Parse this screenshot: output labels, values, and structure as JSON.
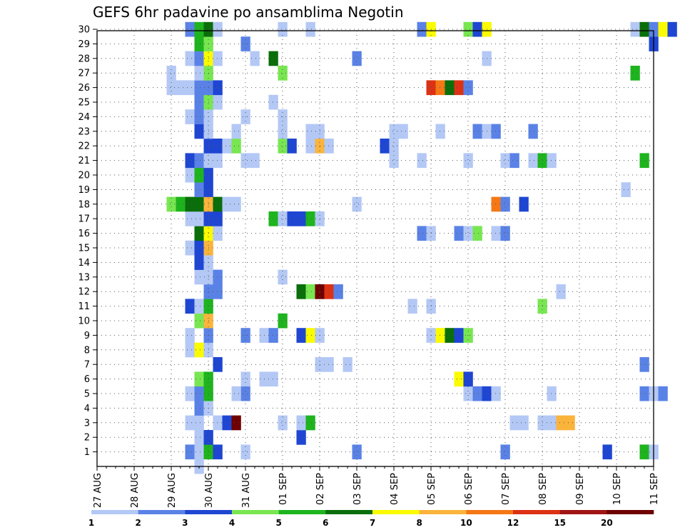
{
  "chart_data": {
    "type": "heatmap",
    "title": "GEFS 6hr padavine po ansamblima Negotin",
    "x_tick_labels": [
      "27 AUG",
      "28 AUG",
      "29 AUG",
      "30 AUG",
      "31 AUG",
      "01 SEP",
      "02 SEP",
      "03 SEP",
      "04 SEP",
      "05 SEP",
      "06 SEP",
      "07 SEP",
      "08 SEP",
      "09 SEP",
      "10 SEP",
      "11 SEP"
    ],
    "x_range_days": [
      0,
      15
    ],
    "y_tick_labels": [
      "1",
      "2",
      "3",
      "4",
      "5",
      "6",
      "7",
      "8",
      "9",
      "10",
      "11",
      "12",
      "13",
      "14",
      "15",
      "16",
      "17",
      "18",
      "19",
      "20",
      "21",
      "22",
      "23",
      "24",
      "25",
      "26",
      "27",
      "28",
      "29",
      "30"
    ],
    "y_range": [
      0,
      30
    ],
    "grid": true,
    "legend": {
      "placement": "bottom",
      "labels": [
        "1",
        "2",
        "3",
        "4",
        "5",
        "6",
        "7",
        "8",
        "10",
        "12",
        "15",
        "20"
      ],
      "colors": [
        "#b4c8f5",
        "#5a82e6",
        "#1e46d2",
        "#78e650",
        "#1eb41e",
        "#0a6e0a",
        "#fafa00",
        "#fab43c",
        "#f57814",
        "#dc3214",
        "#a01414",
        "#6e0000"
      ]
    },
    "category_colors": {
      "1": "#b4c8f5",
      "2": "#5a82e6",
      "3": "#1e46d2",
      "4": "#78e650",
      "5": "#1eb41e",
      "6": "#0a6e0a",
      "7": "#fafa00",
      "8": "#fab43c",
      "9": "#f57814",
      "10": "#dc3214",
      "11": "#a01414",
      "12": "#6e0000"
    },
    "cell_width_days": 0.25,
    "cells": [
      {
        "m": 1,
        "d": 2.5,
        "c": 2
      },
      {
        "m": 1,
        "d": 2.75,
        "c": 1
      },
      {
        "m": 1,
        "d": 3.0,
        "c": 5
      },
      {
        "m": 1,
        "d": 3.25,
        "c": 3
      },
      {
        "m": 1,
        "d": 4.0,
        "c": 1
      },
      {
        "m": 1,
        "d": 7.0,
        "c": 2
      },
      {
        "m": 1,
        "d": 11.0,
        "c": 2
      },
      {
        "m": 1,
        "d": 13.75,
        "c": 3
      },
      {
        "m": 1,
        "d": 14.75,
        "c": 5
      },
      {
        "m": 1,
        "d": 15.0,
        "c": 1
      },
      {
        "m": 2,
        "d": 2.75,
        "c": 1
      },
      {
        "m": 2,
        "d": 3.0,
        "c": 3
      },
      {
        "m": 2,
        "d": 5.5,
        "c": 3
      },
      {
        "m": 3,
        "d": 2.5,
        "c": 1
      },
      {
        "m": 3,
        "d": 2.75,
        "c": 1
      },
      {
        "m": 3,
        "d": 3.25,
        "c": 1
      },
      {
        "m": 3,
        "d": 3.5,
        "c": 3
      },
      {
        "m": 3,
        "d": 3.75,
        "c": 12
      },
      {
        "m": 3,
        "d": 5.0,
        "c": 1
      },
      {
        "m": 3,
        "d": 5.5,
        "c": 1
      },
      {
        "m": 3,
        "d": 5.75,
        "c": 5
      },
      {
        "m": 3,
        "d": 11.25,
        "c": 1
      },
      {
        "m": 3,
        "d": 11.5,
        "c": 1
      },
      {
        "m": 3,
        "d": 12.0,
        "c": 1
      },
      {
        "m": 3,
        "d": 12.25,
        "c": 1
      },
      {
        "m": 3,
        "d": 12.5,
        "c": 8
      },
      {
        "m": 3,
        "d": 12.75,
        "c": 8
      },
      {
        "m": 4,
        "d": 2.75,
        "c": 2
      },
      {
        "m": 4,
        "d": 3.0,
        "c": 1
      },
      {
        "m": 5,
        "d": 2.5,
        "c": 1
      },
      {
        "m": 5,
        "d": 2.75,
        "c": 2
      },
      {
        "m": 5,
        "d": 3.0,
        "c": 5
      },
      {
        "m": 5,
        "d": 4.0,
        "c": 2
      },
      {
        "m": 5,
        "d": 3.75,
        "c": 1
      },
      {
        "m": 5,
        "d": 10.0,
        "c": 1
      },
      {
        "m": 5,
        "d": 10.25,
        "c": 2
      },
      {
        "m": 5,
        "d": 10.5,
        "c": 3
      },
      {
        "m": 5,
        "d": 10.75,
        "c": 1
      },
      {
        "m": 5,
        "d": 12.25,
        "c": 1
      },
      {
        "m": 5,
        "d": 14.75,
        "c": 2
      },
      {
        "m": 5,
        "d": 15.0,
        "c": 1
      },
      {
        "m": 5,
        "d": 15.25,
        "c": 2
      },
      {
        "m": 6,
        "d": 2.75,
        "c": 4
      },
      {
        "m": 6,
        "d": 3.0,
        "c": 5
      },
      {
        "m": 6,
        "d": 4.0,
        "c": 1
      },
      {
        "m": 6,
        "d": 4.5,
        "c": 1
      },
      {
        "m": 6,
        "d": 4.75,
        "c": 1
      },
      {
        "m": 6,
        "d": 9.75,
        "c": 7
      },
      {
        "m": 6,
        "d": 10.0,
        "c": 3
      },
      {
        "m": 7,
        "d": 3.25,
        "c": 3
      },
      {
        "m": 7,
        "d": 6.0,
        "c": 1
      },
      {
        "m": 7,
        "d": 6.25,
        "c": 1
      },
      {
        "m": 7,
        "d": 6.75,
        "c": 1
      },
      {
        "m": 7,
        "d": 14.75,
        "c": 2
      },
      {
        "m": 8,
        "d": 2.5,
        "c": 1
      },
      {
        "m": 8,
        "d": 2.75,
        "c": 7
      },
      {
        "m": 8,
        "d": 3.0,
        "c": 1
      },
      {
        "m": 9,
        "d": 2.5,
        "c": 1
      },
      {
        "m": 9,
        "d": 3.0,
        "c": 2
      },
      {
        "m": 9,
        "d": 4.0,
        "c": 2
      },
      {
        "m": 9,
        "d": 4.5,
        "c": 1
      },
      {
        "m": 9,
        "d": 4.75,
        "c": 2
      },
      {
        "m": 9,
        "d": 5.5,
        "c": 3
      },
      {
        "m": 9,
        "d": 5.75,
        "c": 7
      },
      {
        "m": 9,
        "d": 6.0,
        "c": 1
      },
      {
        "m": 9,
        "d": 9.0,
        "c": 1
      },
      {
        "m": 9,
        "d": 9.25,
        "c": 7
      },
      {
        "m": 9,
        "d": 9.5,
        "c": 6
      },
      {
        "m": 9,
        "d": 9.75,
        "c": 3
      },
      {
        "m": 9,
        "d": 10.0,
        "c": 4
      },
      {
        "m": 10,
        "d": 2.75,
        "c": 4
      },
      {
        "m": 10,
        "d": 3.0,
        "c": 8
      },
      {
        "m": 10,
        "d": 5.0,
        "c": 5
      },
      {
        "m": 11,
        "d": 2.5,
        "c": 3
      },
      {
        "m": 11,
        "d": 2.75,
        "c": 1
      },
      {
        "m": 11,
        "d": 3.0,
        "c": 5
      },
      {
        "m": 11,
        "d": 8.5,
        "c": 1
      },
      {
        "m": 11,
        "d": 9.0,
        "c": 1
      },
      {
        "m": 11,
        "d": 12.0,
        "c": 4
      },
      {
        "m": 12,
        "d": 3.0,
        "c": 2
      },
      {
        "m": 12,
        "d": 3.25,
        "c": 2
      },
      {
        "m": 12,
        "d": 5.5,
        "c": 6
      },
      {
        "m": 12,
        "d": 5.75,
        "c": 4
      },
      {
        "m": 12,
        "d": 6.0,
        "c": 12
      },
      {
        "m": 12,
        "d": 6.25,
        "c": 10
      },
      {
        "m": 12,
        "d": 6.5,
        "c": 2
      },
      {
        "m": 12,
        "d": 12.5,
        "c": 1
      },
      {
        "m": 13,
        "d": 2.75,
        "c": 1
      },
      {
        "m": 13,
        "d": 3.0,
        "c": 1
      },
      {
        "m": 13,
        "d": 3.25,
        "c": 2
      },
      {
        "m": 13,
        "d": 5.0,
        "c": 1
      },
      {
        "m": 14,
        "d": 2.75,
        "c": 3
      },
      {
        "m": 14,
        "d": 3.0,
        "c": 1
      },
      {
        "m": 15,
        "d": 2.5,
        "c": 1
      },
      {
        "m": 15,
        "d": 2.75,
        "c": 3
      },
      {
        "m": 15,
        "d": 3.0,
        "c": 8
      },
      {
        "m": 16,
        "d": 2.75,
        "c": 6
      },
      {
        "m": 16,
        "d": 3.0,
        "c": 7
      },
      {
        "m": 16,
        "d": 3.25,
        "c": 1
      },
      {
        "m": 16,
        "d": 8.75,
        "c": 2
      },
      {
        "m": 16,
        "d": 9.0,
        "c": 1
      },
      {
        "m": 16,
        "d": 9.75,
        "c": 2
      },
      {
        "m": 16,
        "d": 10.0,
        "c": 1
      },
      {
        "m": 16,
        "d": 10.25,
        "c": 4
      },
      {
        "m": 16,
        "d": 10.75,
        "c": 1
      },
      {
        "m": 16,
        "d": 11.0,
        "c": 2
      },
      {
        "m": 17,
        "d": 2.5,
        "c": 1
      },
      {
        "m": 17,
        "d": 2.75,
        "c": 1
      },
      {
        "m": 17,
        "d": 3.0,
        "c": 3
      },
      {
        "m": 17,
        "d": 3.25,
        "c": 3
      },
      {
        "m": 17,
        "d": 4.75,
        "c": 5
      },
      {
        "m": 17,
        "d": 5.0,
        "c": 1
      },
      {
        "m": 17,
        "d": 5.25,
        "c": 3
      },
      {
        "m": 17,
        "d": 5.5,
        "c": 3
      },
      {
        "m": 17,
        "d": 5.75,
        "c": 5
      },
      {
        "m": 17,
        "d": 6.0,
        "c": 1
      },
      {
        "m": 18,
        "d": 2.0,
        "c": 4
      },
      {
        "m": 18,
        "d": 2.25,
        "c": 5
      },
      {
        "m": 18,
        "d": 2.5,
        "c": 6
      },
      {
        "m": 18,
        "d": 2.75,
        "c": 6
      },
      {
        "m": 18,
        "d": 3.0,
        "c": 8
      },
      {
        "m": 18,
        "d": 3.25,
        "c": 6
      },
      {
        "m": 18,
        "d": 3.5,
        "c": 1
      },
      {
        "m": 18,
        "d": 3.75,
        "c": 1
      },
      {
        "m": 18,
        "d": 7.0,
        "c": 1
      },
      {
        "m": 18,
        "d": 10.75,
        "c": 9
      },
      {
        "m": 18,
        "d": 11.0,
        "c": 2
      },
      {
        "m": 18,
        "d": 11.5,
        "c": 3
      },
      {
        "m": 19,
        "d": 2.75,
        "c": 2
      },
      {
        "m": 19,
        "d": 3.0,
        "c": 3
      },
      {
        "m": 19,
        "d": 14.25,
        "c": 1
      },
      {
        "m": 20,
        "d": 2.5,
        "c": 1
      },
      {
        "m": 20,
        "d": 2.75,
        "c": 5
      },
      {
        "m": 20,
        "d": 3.0,
        "c": 3
      },
      {
        "m": 21,
        "d": 2.5,
        "c": 3
      },
      {
        "m": 21,
        "d": 2.75,
        "c": 2
      },
      {
        "m": 21,
        "d": 3.0,
        "c": 1
      },
      {
        "m": 21,
        "d": 3.25,
        "c": 1
      },
      {
        "m": 21,
        "d": 4.0,
        "c": 1
      },
      {
        "m": 21,
        "d": 4.25,
        "c": 1
      },
      {
        "m": 21,
        "d": 8.0,
        "c": 1
      },
      {
        "m": 21,
        "d": 8.75,
        "c": 1
      },
      {
        "m": 21,
        "d": 10.0,
        "c": 1
      },
      {
        "m": 21,
        "d": 11.0,
        "c": 1
      },
      {
        "m": 21,
        "d": 11.25,
        "c": 2
      },
      {
        "m": 21,
        "d": 11.75,
        "c": 1
      },
      {
        "m": 21,
        "d": 12.0,
        "c": 5
      },
      {
        "m": 21,
        "d": 12.25,
        "c": 1
      },
      {
        "m": 21,
        "d": 14.75,
        "c": 5
      },
      {
        "m": 22,
        "d": 3.0,
        "c": 3
      },
      {
        "m": 22,
        "d": 3.25,
        "c": 3
      },
      {
        "m": 22,
        "d": 3.5,
        "c": 1
      },
      {
        "m": 22,
        "d": 3.75,
        "c": 4
      },
      {
        "m": 22,
        "d": 5.0,
        "c": 4
      },
      {
        "m": 22,
        "d": 5.25,
        "c": 3
      },
      {
        "m": 22,
        "d": 5.75,
        "c": 1
      },
      {
        "m": 22,
        "d": 6.0,
        "c": 8
      },
      {
        "m": 22,
        "d": 6.25,
        "c": 1
      },
      {
        "m": 22,
        "d": 7.75,
        "c": 3
      },
      {
        "m": 22,
        "d": 8.0,
        "c": 1
      },
      {
        "m": 23,
        "d": 2.75,
        "c": 3
      },
      {
        "m": 23,
        "d": 3.0,
        "c": 1
      },
      {
        "m": 23,
        "d": 3.75,
        "c": 1
      },
      {
        "m": 23,
        "d": 5.0,
        "c": 1
      },
      {
        "m": 23,
        "d": 5.75,
        "c": 1
      },
      {
        "m": 23,
        "d": 6.0,
        "c": 1
      },
      {
        "m": 23,
        "d": 8.0,
        "c": 1
      },
      {
        "m": 23,
        "d": 8.25,
        "c": 1
      },
      {
        "m": 23,
        "d": 9.25,
        "c": 1
      },
      {
        "m": 23,
        "d": 10.25,
        "c": 2
      },
      {
        "m": 23,
        "d": 10.5,
        "c": 1
      },
      {
        "m": 23,
        "d": 10.75,
        "c": 2
      },
      {
        "m": 23,
        "d": 11.75,
        "c": 2
      },
      {
        "m": 24,
        "d": 2.5,
        "c": 1
      },
      {
        "m": 24,
        "d": 2.75,
        "c": 2
      },
      {
        "m": 24,
        "d": 3.0,
        "c": 1
      },
      {
        "m": 24,
        "d": 4.0,
        "c": 1
      },
      {
        "m": 24,
        "d": 5.0,
        "c": 1
      },
      {
        "m": 25,
        "d": 2.75,
        "c": 2
      },
      {
        "m": 25,
        "d": 3.0,
        "c": 4
      },
      {
        "m": 25,
        "d": 3.25,
        "c": 1
      },
      {
        "m": 25,
        "d": 4.75,
        "c": 1
      },
      {
        "m": 26,
        "d": 2.0,
        "c": 1
      },
      {
        "m": 26,
        "d": 2.25,
        "c": 1
      },
      {
        "m": 26,
        "d": 2.5,
        "c": 1
      },
      {
        "m": 26,
        "d": 2.75,
        "c": 2
      },
      {
        "m": 26,
        "d": 3.0,
        "c": 2
      },
      {
        "m": 26,
        "d": 3.25,
        "c": 3
      },
      {
        "m": 26,
        "d": 9.0,
        "c": 10
      },
      {
        "m": 26,
        "d": 9.25,
        "c": 9
      },
      {
        "m": 26,
        "d": 9.5,
        "c": 6
      },
      {
        "m": 26,
        "d": 9.75,
        "c": 10
      },
      {
        "m": 26,
        "d": 10.0,
        "c": 2
      },
      {
        "m": 27,
        "d": 2.0,
        "c": 1
      },
      {
        "m": 27,
        "d": 2.75,
        "c": 1
      },
      {
        "m": 27,
        "d": 3.0,
        "c": 4
      },
      {
        "m": 27,
        "d": 5.0,
        "c": 4
      },
      {
        "m": 27,
        "d": 14.5,
        "c": 5
      },
      {
        "m": 28,
        "d": 2.5,
        "c": 1
      },
      {
        "m": 28,
        "d": 2.75,
        "c": 2
      },
      {
        "m": 28,
        "d": 3.0,
        "c": 7
      },
      {
        "m": 28,
        "d": 3.25,
        "c": 1
      },
      {
        "m": 28,
        "d": 4.25,
        "c": 1
      },
      {
        "m": 28,
        "d": 4.75,
        "c": 6
      },
      {
        "m": 28,
        "d": 7.0,
        "c": 2
      },
      {
        "m": 28,
        "d": 10.5,
        "c": 1
      },
      {
        "m": 29,
        "d": 2.75,
        "c": 5
      },
      {
        "m": 29,
        "d": 3.0,
        "c": 4
      },
      {
        "m": 29,
        "d": 4.0,
        "c": 2
      },
      {
        "m": 29,
        "d": 15.0,
        "c": 3
      },
      {
        "m": 30,
        "d": 2.5,
        "c": 2
      },
      {
        "m": 30,
        "d": 2.75,
        "c": 5
      },
      {
        "m": 30,
        "d": 3.0,
        "c": 6
      },
      {
        "m": 30,
        "d": 3.25,
        "c": 1
      },
      {
        "m": 30,
        "d": 5.0,
        "c": 1
      },
      {
        "m": 30,
        "d": 5.75,
        "c": 1
      },
      {
        "m": 30,
        "d": 8.75,
        "c": 2
      },
      {
        "m": 30,
        "d": 9.0,
        "c": 7
      },
      {
        "m": 30,
        "d": 10.0,
        "c": 4
      },
      {
        "m": 30,
        "d": 10.25,
        "c": 3
      },
      {
        "m": 30,
        "d": 10.5,
        "c": 7
      },
      {
        "m": 30,
        "d": 14.5,
        "c": 1
      },
      {
        "m": 30,
        "d": 14.75,
        "c": 6
      },
      {
        "m": 30,
        "d": 15.0,
        "c": 2
      },
      {
        "m": 30,
        "d": 15.25,
        "c": 7
      },
      {
        "m": 30,
        "d": 15.5,
        "c": 3
      },
      {
        "m": 0,
        "d": 2.75,
        "c": 1
      }
    ]
  }
}
